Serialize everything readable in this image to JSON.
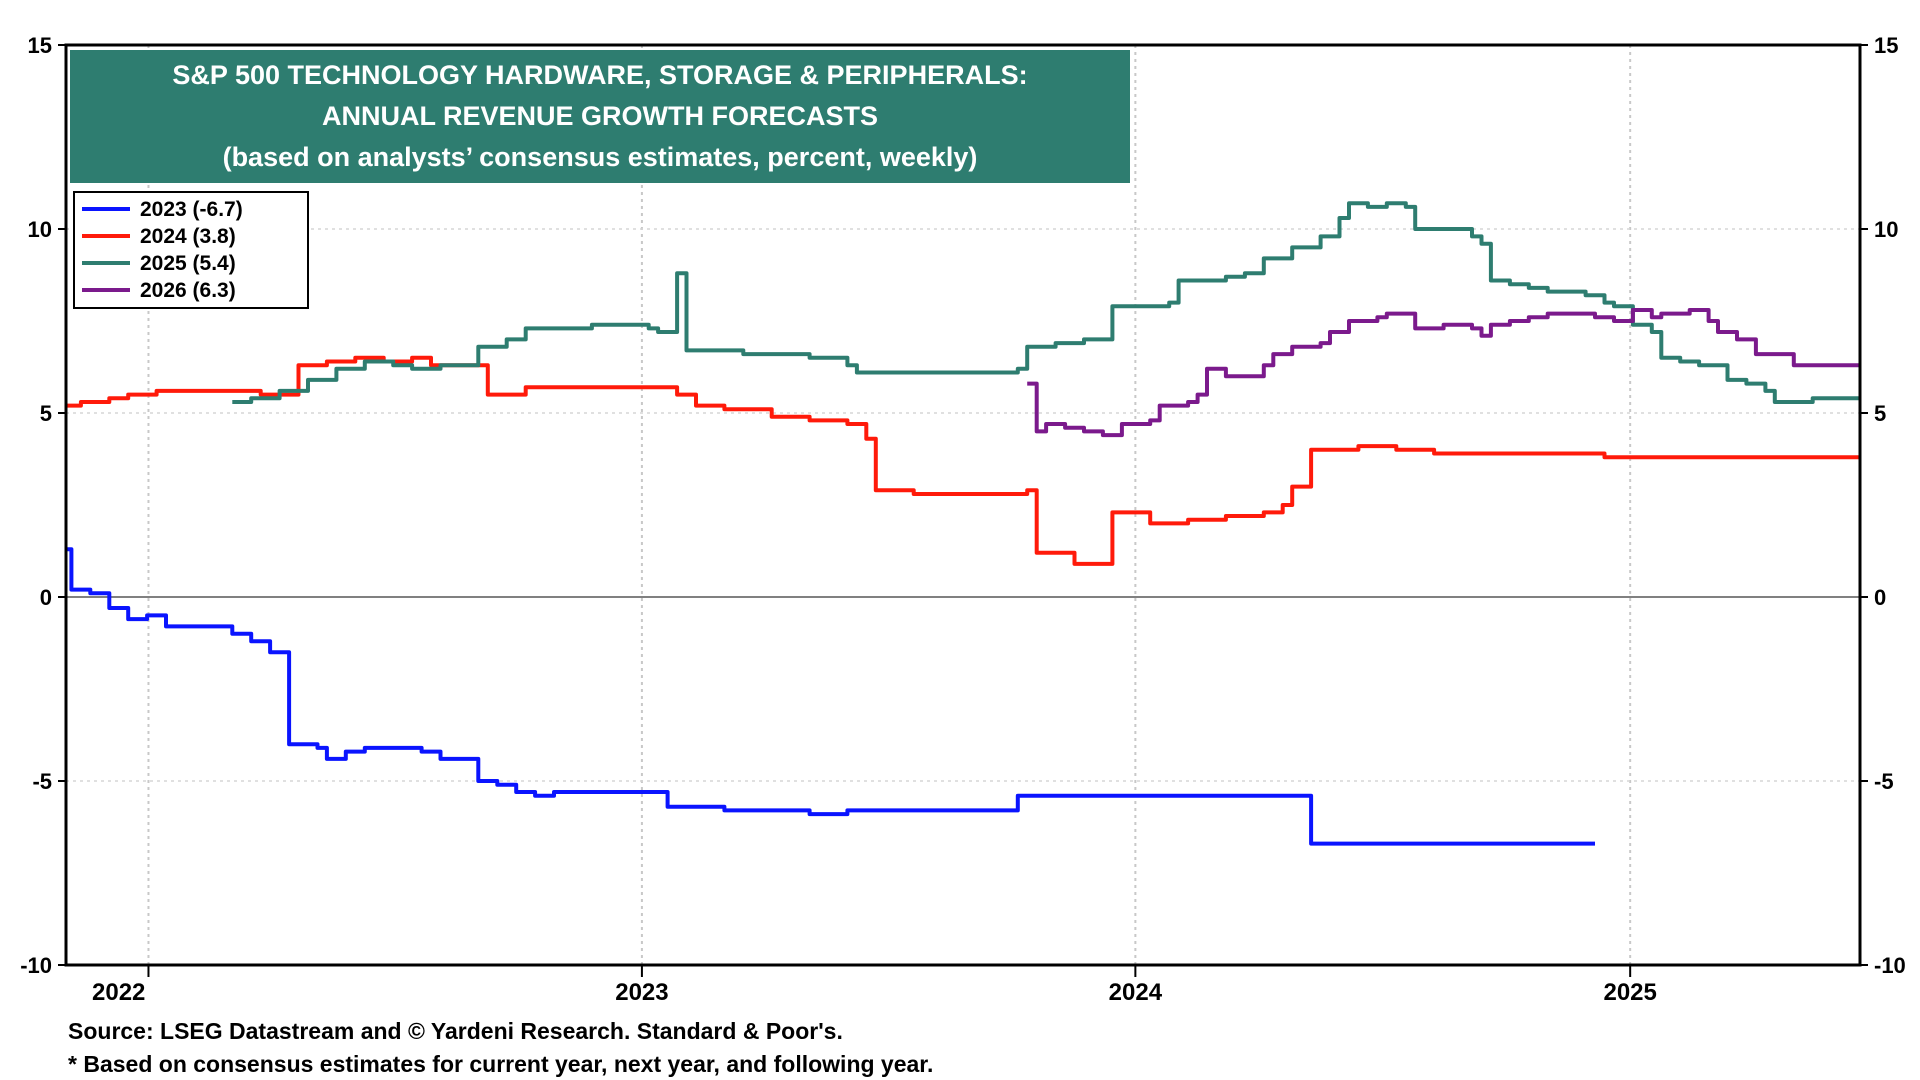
{
  "chart_data": {
    "type": "line",
    "title_lines": [
      "S&P 500 TECHNOLOGY HARDWARE, STORAGE & PERIPHERALS:",
      "ANNUAL REVENUE GROWTH FORECASTS",
      "(based on analysts’ consensus estimates, percent, weekly)"
    ],
    "xlabel": "",
    "ylabel": "",
    "x_ticks": [
      "2022",
      "2023",
      "2024",
      "2025"
    ],
    "ylim": [
      -10,
      15
    ],
    "y_ticks": [
      {
        "value": 15,
        "label": "15"
      },
      {
        "value": 10,
        "label": "10"
      },
      {
        "value": 5,
        "label": "5"
      },
      {
        "value": 0,
        "label": "0"
      },
      {
        "value": -5,
        "label": "-5"
      },
      {
        "value": -10,
        "label": "-10"
      }
    ],
    "zero_line": true,
    "grid": true,
    "legend_position": "top-left",
    "series": [
      {
        "name": "2023 (-6.7)",
        "color": "#0a14ff",
        "points": [
          [
            "2021-11-01",
            1.3
          ],
          [
            "2021-11-05",
            0.2
          ],
          [
            "2021-11-19",
            0.1
          ],
          [
            "2021-12-03",
            -0.3
          ],
          [
            "2021-12-17",
            -0.6
          ],
          [
            "2021-12-31",
            -0.5
          ],
          [
            "2022-01-14",
            -0.8
          ],
          [
            "2022-02-04",
            -0.8
          ],
          [
            "2022-02-18",
            -0.8
          ],
          [
            "2022-03-04",
            -1.0
          ],
          [
            "2022-03-18",
            -1.2
          ],
          [
            "2022-04-01",
            -1.5
          ],
          [
            "2022-04-15",
            -4.0
          ],
          [
            "2022-05-06",
            -4.1
          ],
          [
            "2022-05-13",
            -4.4
          ],
          [
            "2022-05-27",
            -4.2
          ],
          [
            "2022-06-10",
            -4.1
          ],
          [
            "2022-06-24",
            -4.1
          ],
          [
            "2022-07-08",
            -4.1
          ],
          [
            "2022-07-22",
            -4.2
          ],
          [
            "2022-08-05",
            -4.4
          ],
          [
            "2022-08-19",
            -4.4
          ],
          [
            "2022-09-02",
            -5.0
          ],
          [
            "2022-09-16",
            -5.1
          ],
          [
            "2022-09-30",
            -5.3
          ],
          [
            "2022-10-14",
            -5.4
          ],
          [
            "2022-10-28",
            -5.3
          ],
          [
            "2023-01-06",
            -5.3
          ],
          [
            "2023-01-20",
            -5.7
          ],
          [
            "2023-02-10",
            -5.7
          ],
          [
            "2023-03-03",
            -5.8
          ],
          [
            "2023-04-07",
            -5.8
          ],
          [
            "2023-05-05",
            -5.9
          ],
          [
            "2023-06-02",
            -5.8
          ],
          [
            "2023-09-29",
            -5.8
          ],
          [
            "2023-10-06",
            -5.4
          ],
          [
            "2024-05-03",
            -5.4
          ],
          [
            "2024-05-10",
            -6.7
          ],
          [
            "2024-12-06",
            -6.7
          ]
        ]
      },
      {
        "name": "2024 (3.8)",
        "color": "#ff1a0a",
        "points": [
          [
            "2021-11-01",
            5.2
          ],
          [
            "2021-11-12",
            5.3
          ],
          [
            "2021-12-03",
            5.4
          ],
          [
            "2021-12-17",
            5.5
          ],
          [
            "2022-01-07",
            5.6
          ],
          [
            "2022-01-28",
            5.6
          ],
          [
            "2022-02-18",
            5.6
          ],
          [
            "2022-03-11",
            5.6
          ],
          [
            "2022-03-25",
            5.5
          ],
          [
            "2022-04-15",
            5.5
          ],
          [
            "2022-04-22",
            6.3
          ],
          [
            "2022-05-13",
            6.4
          ],
          [
            "2022-06-03",
            6.5
          ],
          [
            "2022-06-24",
            6.4
          ],
          [
            "2022-07-15",
            6.5
          ],
          [
            "2022-07-29",
            6.3
          ],
          [
            "2022-08-19",
            6.3
          ],
          [
            "2022-09-02",
            6.3
          ],
          [
            "2022-09-09",
            5.5
          ],
          [
            "2022-10-07",
            5.7
          ],
          [
            "2022-11-04",
            5.7
          ],
          [
            "2023-01-13",
            5.7
          ],
          [
            "2023-01-27",
            5.5
          ],
          [
            "2023-02-10",
            5.2
          ],
          [
            "2023-03-03",
            5.1
          ],
          [
            "2023-04-07",
            4.9
          ],
          [
            "2023-05-05",
            4.8
          ],
          [
            "2023-06-02",
            4.7
          ],
          [
            "2023-06-16",
            4.3
          ],
          [
            "2023-06-23",
            2.9
          ],
          [
            "2023-07-21",
            2.8
          ],
          [
            "2023-08-25",
            2.8
          ],
          [
            "2023-10-06",
            2.8
          ],
          [
            "2023-10-13",
            2.9
          ],
          [
            "2023-10-20",
            1.2
          ],
          [
            "2023-11-17",
            0.9
          ],
          [
            "2023-12-08",
            0.9
          ],
          [
            "2023-12-15",
            2.3
          ],
          [
            "2024-01-12",
            2.0
          ],
          [
            "2024-02-09",
            2.1
          ],
          [
            "2024-03-08",
            2.2
          ],
          [
            "2024-04-05",
            2.3
          ],
          [
            "2024-04-19",
            2.5
          ],
          [
            "2024-04-26",
            3.0
          ],
          [
            "2024-05-03",
            3.0
          ],
          [
            "2024-05-10",
            4.0
          ],
          [
            "2024-06-07",
            4.0
          ],
          [
            "2024-06-14",
            4.1
          ],
          [
            "2024-07-12",
            4.0
          ],
          [
            "2024-08-09",
            3.9
          ],
          [
            "2024-12-06",
            3.9
          ],
          [
            "2024-12-13",
            3.8
          ],
          [
            "2025-02-07",
            3.8
          ],
          [
            "2025-06-20",
            3.8
          ]
        ]
      },
      {
        "name": "2025 (5.4)",
        "color": "#2e7d70",
        "points": [
          [
            "2022-03-04",
            5.3
          ],
          [
            "2022-03-18",
            5.4
          ],
          [
            "2022-04-08",
            5.6
          ],
          [
            "2022-04-29",
            5.9
          ],
          [
            "2022-05-20",
            6.2
          ],
          [
            "2022-06-10",
            6.4
          ],
          [
            "2022-07-01",
            6.3
          ],
          [
            "2022-07-15",
            6.2
          ],
          [
            "2022-08-05",
            6.3
          ],
          [
            "2022-08-26",
            6.3
          ],
          [
            "2022-09-02",
            6.8
          ],
          [
            "2022-09-23",
            7.0
          ],
          [
            "2022-10-07",
            7.3
          ],
          [
            "2022-11-04",
            7.3
          ],
          [
            "2022-11-25",
            7.4
          ],
          [
            "2022-12-16",
            7.4
          ],
          [
            "2023-01-06",
            7.3
          ],
          [
            "2023-01-13",
            7.2
          ],
          [
            "2023-01-27",
            8.8
          ],
          [
            "2023-02-03",
            6.7
          ],
          [
            "2023-03-03",
            6.7
          ],
          [
            "2023-03-17",
            6.6
          ],
          [
            "2023-04-07",
            6.6
          ],
          [
            "2023-05-05",
            6.5
          ],
          [
            "2023-06-02",
            6.3
          ],
          [
            "2023-06-09",
            6.1
          ],
          [
            "2023-06-30",
            6.1
          ],
          [
            "2023-07-28",
            6.1
          ],
          [
            "2023-08-25",
            6.1
          ],
          [
            "2023-09-22",
            6.1
          ],
          [
            "2023-10-06",
            6.2
          ],
          [
            "2023-10-13",
            6.8
          ],
          [
            "2023-11-03",
            6.9
          ],
          [
            "2023-11-24",
            7.0
          ],
          [
            "2023-12-08",
            7.0
          ],
          [
            "2023-12-15",
            7.9
          ],
          [
            "2024-01-12",
            7.9
          ],
          [
            "2024-01-26",
            8.0
          ],
          [
            "2024-02-02",
            8.6
          ],
          [
            "2024-03-08",
            8.7
          ],
          [
            "2024-03-22",
            8.8
          ],
          [
            "2024-04-05",
            9.2
          ],
          [
            "2024-04-26",
            9.5
          ],
          [
            "2024-05-17",
            9.8
          ],
          [
            "2024-05-31",
            10.3
          ],
          [
            "2024-06-07",
            10.7
          ],
          [
            "2024-06-21",
            10.6
          ],
          [
            "2024-07-05",
            10.7
          ],
          [
            "2024-07-19",
            10.6
          ],
          [
            "2024-07-26",
            10.0
          ],
          [
            "2024-08-16",
            10.0
          ],
          [
            "2024-09-06",
            9.8
          ],
          [
            "2024-09-13",
            9.6
          ],
          [
            "2024-09-20",
            8.6
          ],
          [
            "2024-10-04",
            8.5
          ],
          [
            "2024-10-18",
            8.4
          ],
          [
            "2024-11-01",
            8.3
          ],
          [
            "2024-11-29",
            8.2
          ],
          [
            "2024-12-13",
            8.0
          ],
          [
            "2024-12-20",
            7.9
          ],
          [
            "2025-01-03",
            7.4
          ],
          [
            "2025-01-17",
            7.2
          ],
          [
            "2025-01-24",
            6.5
          ],
          [
            "2025-02-07",
            6.4
          ],
          [
            "2025-02-21",
            6.3
          ],
          [
            "2025-03-07",
            6.3
          ],
          [
            "2025-03-14",
            5.9
          ],
          [
            "2025-03-28",
            5.8
          ],
          [
            "2025-04-11",
            5.6
          ],
          [
            "2025-04-18",
            5.3
          ],
          [
            "2025-05-02",
            5.3
          ],
          [
            "2025-05-16",
            5.4
          ],
          [
            "2025-06-20",
            5.4
          ]
        ]
      },
      {
        "name": "2026 (6.3)",
        "color": "#7b1a8c",
        "points": [
          [
            "2023-10-13",
            5.8
          ],
          [
            "2023-10-20",
            4.5
          ],
          [
            "2023-10-27",
            4.7
          ],
          [
            "2023-11-10",
            4.6
          ],
          [
            "2023-11-24",
            4.5
          ],
          [
            "2023-12-08",
            4.4
          ],
          [
            "2023-12-22",
            4.7
          ],
          [
            "2024-01-12",
            4.8
          ],
          [
            "2024-01-19",
            5.2
          ],
          [
            "2024-02-09",
            5.3
          ],
          [
            "2024-02-16",
            5.5
          ],
          [
            "2024-02-23",
            6.2
          ],
          [
            "2024-03-08",
            6.0
          ],
          [
            "2024-03-22",
            6.0
          ],
          [
            "2024-04-05",
            6.3
          ],
          [
            "2024-04-12",
            6.6
          ],
          [
            "2024-04-26",
            6.8
          ],
          [
            "2024-05-17",
            6.9
          ],
          [
            "2024-05-24",
            7.2
          ],
          [
            "2024-06-07",
            7.5
          ],
          [
            "2024-06-28",
            7.6
          ],
          [
            "2024-07-05",
            7.7
          ],
          [
            "2024-07-26",
            7.3
          ],
          [
            "2024-08-16",
            7.4
          ],
          [
            "2024-09-06",
            7.3
          ],
          [
            "2024-09-13",
            7.1
          ],
          [
            "2024-09-20",
            7.4
          ],
          [
            "2024-10-04",
            7.5
          ],
          [
            "2024-10-18",
            7.6
          ],
          [
            "2024-11-01",
            7.7
          ],
          [
            "2024-11-22",
            7.7
          ],
          [
            "2024-12-06",
            7.6
          ],
          [
            "2024-12-20",
            7.5
          ],
          [
            "2025-01-03",
            7.8
          ],
          [
            "2025-01-17",
            7.6
          ],
          [
            "2025-01-24",
            7.7
          ],
          [
            "2025-02-14",
            7.8
          ],
          [
            "2025-02-28",
            7.5
          ],
          [
            "2025-03-07",
            7.2
          ],
          [
            "2025-03-21",
            7.0
          ],
          [
            "2025-04-04",
            6.6
          ],
          [
            "2025-04-18",
            6.6
          ],
          [
            "2025-05-02",
            6.3
          ],
          [
            "2025-05-16",
            6.3
          ],
          [
            "2025-06-20",
            6.3
          ]
        ]
      }
    ]
  },
  "footer": {
    "source": "Source: LSEG Datastream and © Yardeni Research. Standard & Poor's.",
    "note": "* Based on consensus estimates for current year, next year, and following year."
  },
  "colors": {
    "title_box": "#2e7d70",
    "title_text": "#ffffff"
  }
}
